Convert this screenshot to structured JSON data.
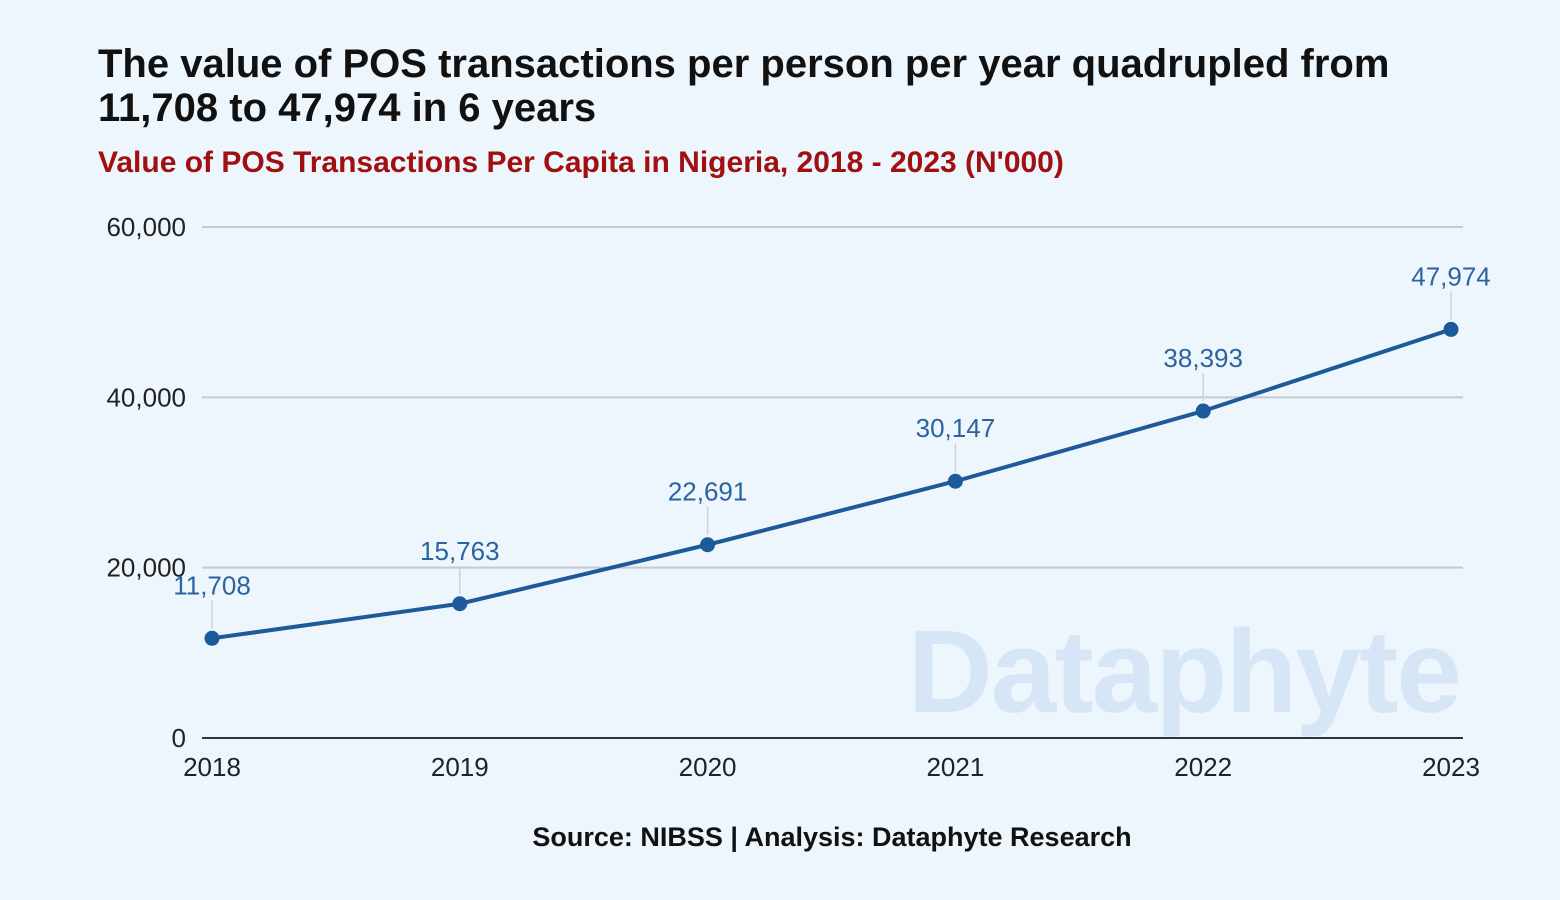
{
  "chart_data": {
    "type": "line",
    "title": "The value of POS transactions per person per year quadrupled from 11,708 to 47,974 in 6 years",
    "subtitle": "Value of POS Transactions Per Capita in Nigeria, 2018 - 2023 (N'000)",
    "x": [
      "2018",
      "2019",
      "2020",
      "2021",
      "2022",
      "2023"
    ],
    "series": [
      {
        "name": "Value of POS Transactions Per Capita",
        "values": [
          11708,
          15763,
          22691,
          30147,
          38393,
          47974
        ],
        "labels": [
          "11,708",
          "15,763",
          "22,691",
          "30,147",
          "38,393",
          "47,974"
        ]
      }
    ],
    "ylim": [
      0,
      60000
    ],
    "yticks": [
      0,
      20000,
      40000,
      60000
    ],
    "ytick_labels": [
      "0",
      "20,000",
      "40,000",
      "60,000"
    ],
    "xlabel": "",
    "ylabel": "",
    "grid": true,
    "legend": "none",
    "colors": {
      "line": "#1d5a9a",
      "grid": "#c4cad2",
      "axis": "#333333",
      "data_label": "#2a63a0",
      "subtitle": "#a01010",
      "background": "#eef6fd",
      "watermark": "#d6e6f6"
    }
  },
  "source": "Source: NIBSS | Analysis: Dataphyte Research",
  "watermark": "Dataphyte"
}
